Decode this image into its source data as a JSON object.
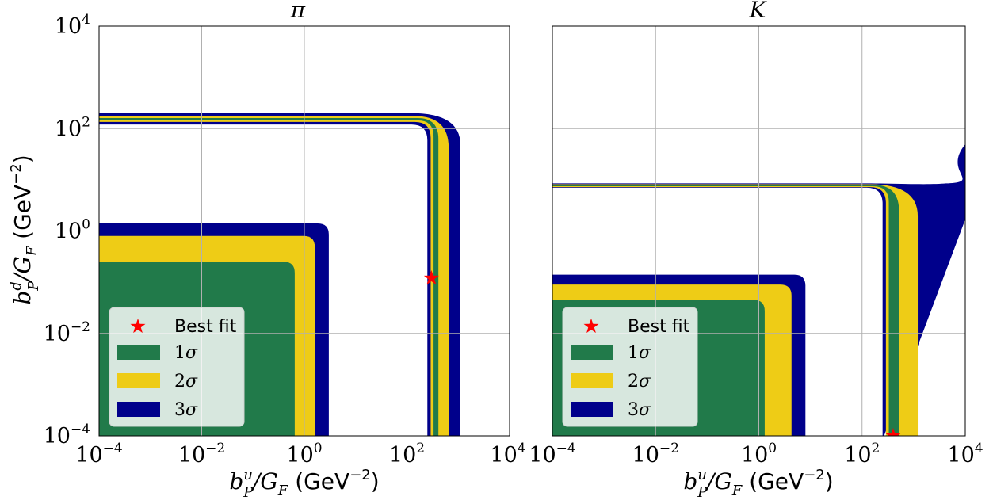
{
  "chart_data": [
    {
      "type": "area",
      "title": "π",
      "xlabel": {
        "base": "b",
        "sub": "P",
        "sup": "u",
        "denom": "/G",
        "denom_sub": "F",
        "unit": "(GeV",
        "unit_exp": "−2",
        "close": ")"
      },
      "ylabel": {
        "base": "b",
        "sub": "P",
        "sup": "d",
        "denom": "/G",
        "denom_sub": "F",
        "unit": "(GeV",
        "unit_exp": "−2",
        "close": ")"
      },
      "xscale": "log",
      "yscale": "log",
      "xlim": [
        0.0001,
        10000
      ],
      "ylim": [
        0.0001,
        10000
      ],
      "xticks": [
        {
          "base": "10",
          "exp": "−4"
        },
        {
          "base": "10",
          "exp": "−2"
        },
        {
          "base": "10",
          "exp": "0"
        },
        {
          "base": "10",
          "exp": "2"
        },
        {
          "base": "10",
          "exp": "4"
        }
      ],
      "yticks": [
        {
          "base": "10",
          "exp": "−4"
        },
        {
          "base": "10",
          "exp": "−2"
        },
        {
          "base": "10",
          "exp": "0"
        },
        {
          "base": "10",
          "exp": "2"
        },
        {
          "base": "10",
          "exp": "4"
        }
      ],
      "grid": true,
      "legend_position": "lower-left",
      "series": [
        {
          "name": "3σ",
          "color": "#00008b",
          "bands": [
            {
              "region": "lower-left",
              "x_edge": 3.0,
              "y_edge": 1.4
            },
            {
              "region": "outer-band",
              "x_range": [
                250,
                1100
              ],
              "y_range": [
                120,
                200
              ]
            }
          ]
        },
        {
          "name": "2σ",
          "color": "#eecc16",
          "bands": [
            {
              "region": "lower-left",
              "x_edge": 1.6,
              "y_edge": 0.8
            },
            {
              "region": "outer-band",
              "x_range": [
                290,
                650
              ],
              "y_range": [
                135,
                175
              ]
            }
          ]
        },
        {
          "name": "1σ",
          "color": "#217a4a",
          "bands": [
            {
              "region": "lower-left",
              "x_edge": 0.65,
              "y_edge": 0.25
            },
            {
              "region": "outer-band",
              "x_range": [
                330,
                410
              ],
              "y_range": [
                145,
                160
              ]
            }
          ]
        }
      ],
      "best_fit": {
        "label": "Best fit",
        "x": 300,
        "y": 0.12,
        "color": "#ff0000"
      }
    },
    {
      "type": "area",
      "title": "K",
      "xlabel": {
        "base": "b",
        "sub": "P",
        "sup": "u",
        "denom": "/G",
        "denom_sub": "F",
        "unit": "(GeV",
        "unit_exp": "−2",
        "close": ")"
      },
      "ylabel": null,
      "xscale": "log",
      "yscale": "log",
      "xlim": [
        0.0001,
        10000
      ],
      "ylim": [
        0.0001,
        10000
      ],
      "xticks": [
        {
          "base": "10",
          "exp": "−4"
        },
        {
          "base": "10",
          "exp": "−2"
        },
        {
          "base": "10",
          "exp": "0"
        },
        {
          "base": "10",
          "exp": "2"
        },
        {
          "base": "10",
          "exp": "4"
        }
      ],
      "grid": true,
      "legend_position": "lower-left",
      "series": [
        {
          "name": "3σ",
          "color": "#00008b",
          "bands": [
            {
              "region": "lower-left",
              "x_edge": 8.0,
              "y_edge": 0.14
            },
            {
              "region": "outer-band",
              "x_range": [
                250,
                10000
              ],
              "y_range": [
                7.0,
                8.5
              ],
              "upper_right_flare_to_y": 60
            }
          ]
        },
        {
          "name": "2σ",
          "color": "#eecc16",
          "bands": [
            {
              "region": "lower-left",
              "x_edge": 4.3,
              "y_edge": 0.09
            },
            {
              "region": "outer-band",
              "x_range": [
                290,
                1200
              ],
              "y_range": [
                7.2,
                8.2
              ]
            }
          ]
        },
        {
          "name": "1σ",
          "color": "#217a4a",
          "bands": [
            {
              "region": "lower-left",
              "x_edge": 1.3,
              "y_edge": 0.045
            },
            {
              "region": "outer-band",
              "x_range": [
                330,
                520
              ],
              "y_range": [
                7.5,
                8.0
              ]
            }
          ]
        }
      ],
      "best_fit": {
        "label": "Best fit",
        "x": 400,
        "y": 0.0001,
        "color": "#ff0000"
      }
    }
  ]
}
